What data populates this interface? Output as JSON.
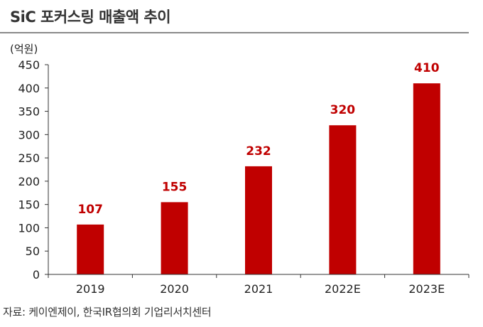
{
  "title": "SiC 포커스링 매출액 추이",
  "source": "자료: 케이엔제이, 한국IR협의회 기업리서치센터",
  "colors": {
    "bar": "#c00000",
    "label": "#c00000",
    "axis": "#333333",
    "rule": "#8a8a8a"
  },
  "chart_data": {
    "type": "bar",
    "title": "SiC 포커스링 매출액 추이",
    "ylabel": "(억원)",
    "xlabel": "",
    "categories": [
      "2019",
      "2020",
      "2021",
      "2022E",
      "2023E"
    ],
    "values": [
      107,
      155,
      232,
      320,
      410
    ],
    "data_labels": [
      "107",
      "155",
      "232",
      "320",
      "410"
    ],
    "ylim": [
      0,
      450
    ],
    "yticks": [
      "0",
      "50",
      "100",
      "150",
      "200",
      "250",
      "300",
      "350",
      "400",
      "450"
    ],
    "grid": false,
    "legend": "none"
  }
}
